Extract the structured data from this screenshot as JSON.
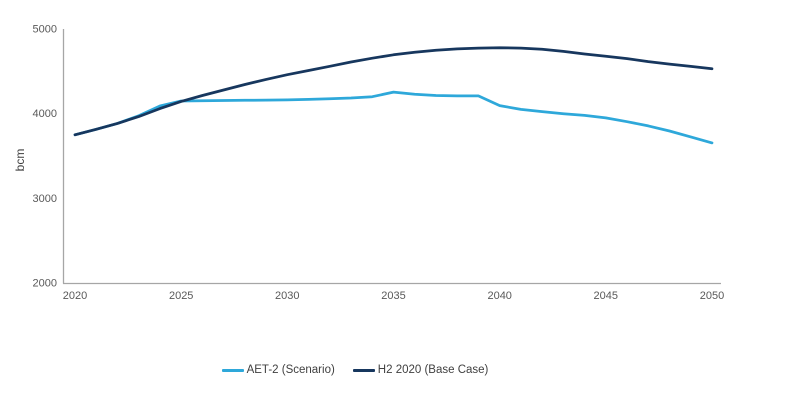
{
  "chart_data": {
    "type": "line",
    "title": "",
    "xlabel": "",
    "ylabel": "bcm",
    "xlim": [
      2020,
      2050
    ],
    "ylim": [
      2000,
      5000
    ],
    "grid": false,
    "legend_position": "bottom-center",
    "xticks": [
      2020,
      2025,
      2030,
      2035,
      2040,
      2045,
      2050
    ],
    "yticks": [
      5000,
      4000,
      3000,
      2000
    ],
    "x": [
      2020,
      2021,
      2022,
      2023,
      2024,
      2025,
      2026,
      2027,
      2028,
      2029,
      2030,
      2031,
      2032,
      2033,
      2034,
      2035,
      2036,
      2037,
      2038,
      2039,
      2040,
      2041,
      2042,
      2043,
      2044,
      2045,
      2046,
      2047,
      2048,
      2049,
      2050
    ],
    "series": [
      {
        "name": "AET-2 (Scenario)",
        "key": "aet2-scenario-line",
        "color": "#2EA8DA",
        "values": [
          3750,
          3815,
          3885,
          3975,
          4090,
          4150,
          4152,
          4155,
          4158,
          4160,
          4163,
          4168,
          4175,
          4185,
          4200,
          4255,
          4230,
          4215,
          4210,
          4210,
          4095,
          4050,
          4025,
          4000,
          3980,
          3950,
          3905,
          3855,
          3795,
          3725,
          3655
        ]
      },
      {
        "name": "H2 2020 (Base Case)",
        "key": "h2-2020-base-case-line",
        "color": "#17375E",
        "values": [
          3750,
          3815,
          3885,
          3965,
          4060,
          4145,
          4215,
          4280,
          4345,
          4405,
          4460,
          4510,
          4560,
          4610,
          4655,
          4695,
          4725,
          4750,
          4765,
          4775,
          4778,
          4775,
          4762,
          4735,
          4705,
          4678,
          4650,
          4615,
          4585,
          4558,
          4530
        ]
      }
    ]
  },
  "colors": {
    "background": "#FFFFFF",
    "axis": "#A6A6A6",
    "tick_text": "#595959",
    "legend_text": "#404040"
  }
}
